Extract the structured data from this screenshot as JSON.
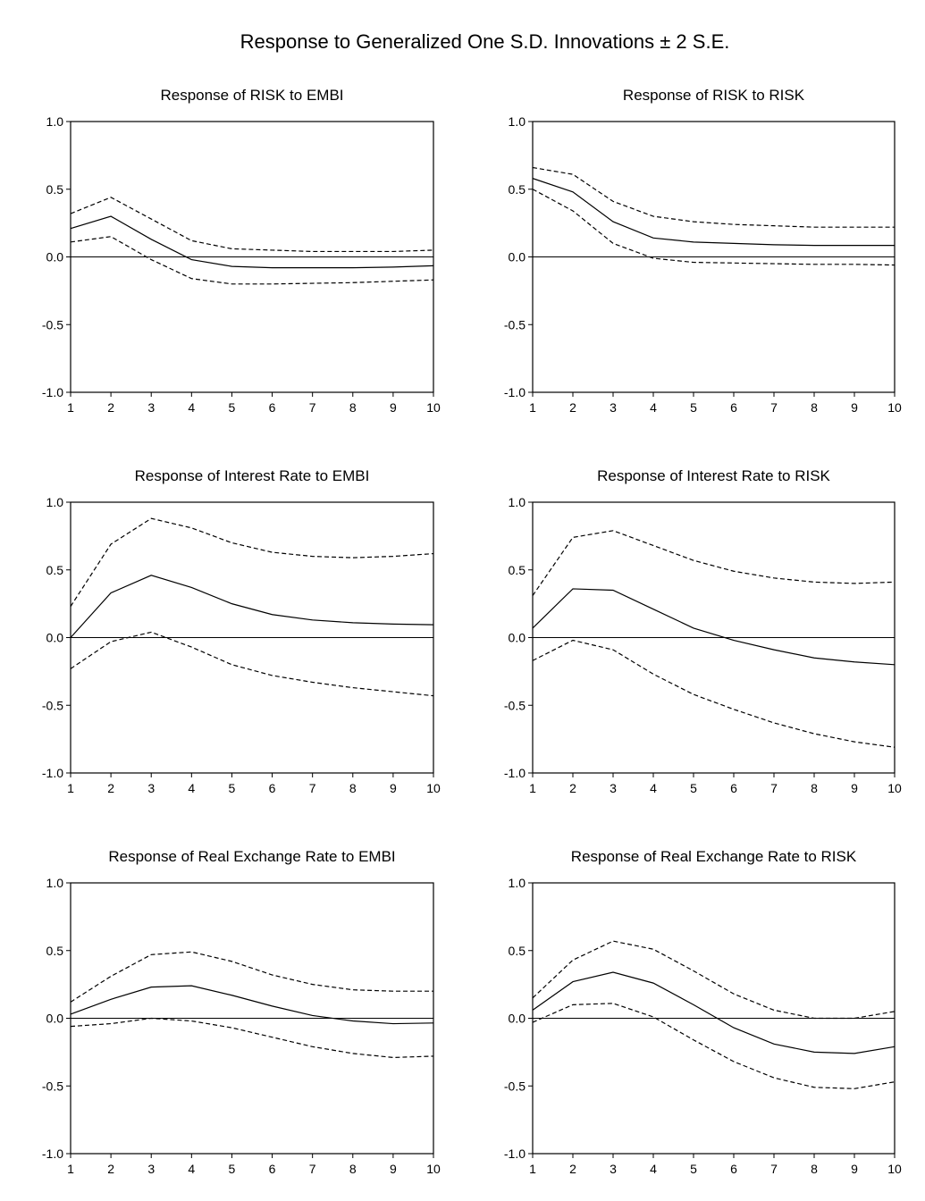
{
  "figure_title": "Response to Generalized One S.D. Innovations ± 2 S.E.",
  "chart_data": [
    {
      "type": "line",
      "title": "Response of RISK to EMBI",
      "x": [
        1,
        2,
        3,
        4,
        5,
        6,
        7,
        8,
        9,
        10
      ],
      "ylim": [
        -1.0,
        1.0
      ],
      "yticks": [
        "1.0",
        "0.5",
        "0.0",
        "-0.5",
        "-1.0"
      ],
      "series": [
        {
          "role": "upper",
          "style": "dashed",
          "values": [
            0.32,
            0.44,
            0.28,
            0.12,
            0.06,
            0.05,
            0.04,
            0.04,
            0.04,
            0.05
          ]
        },
        {
          "role": "response",
          "style": "solid",
          "values": [
            0.21,
            0.3,
            0.13,
            -0.02,
            -0.07,
            -0.08,
            -0.08,
            -0.08,
            -0.075,
            -0.065
          ]
        },
        {
          "role": "lower",
          "style": "dashed",
          "values": [
            0.11,
            0.15,
            -0.02,
            -0.16,
            -0.2,
            -0.2,
            -0.195,
            -0.19,
            -0.18,
            -0.17
          ]
        }
      ]
    },
    {
      "type": "line",
      "title": "Response of RISK to RISK",
      "x": [
        1,
        2,
        3,
        4,
        5,
        6,
        7,
        8,
        9,
        10
      ],
      "ylim": [
        -1.0,
        1.0
      ],
      "yticks": [
        "1.0",
        "0.5",
        "0.0",
        "-0.5",
        "-1.0"
      ],
      "series": [
        {
          "role": "upper",
          "style": "dashed",
          "values": [
            0.66,
            0.61,
            0.41,
            0.3,
            0.26,
            0.24,
            0.23,
            0.22,
            0.22,
            0.22
          ]
        },
        {
          "role": "response",
          "style": "solid",
          "values": [
            0.58,
            0.48,
            0.26,
            0.14,
            0.11,
            0.1,
            0.09,
            0.085,
            0.085,
            0.085
          ]
        },
        {
          "role": "lower",
          "style": "dashed",
          "values": [
            0.5,
            0.34,
            0.1,
            -0.01,
            -0.04,
            -0.045,
            -0.05,
            -0.055,
            -0.055,
            -0.06
          ]
        }
      ]
    },
    {
      "type": "line",
      "title": "Response of Interest Rate to EMBI",
      "x": [
        1,
        2,
        3,
        4,
        5,
        6,
        7,
        8,
        9,
        10
      ],
      "ylim": [
        -1.0,
        1.0
      ],
      "yticks": [
        "1.0",
        "0.5",
        "0.0",
        "-0.5",
        "-1.0"
      ],
      "series": [
        {
          "role": "upper",
          "style": "dashed",
          "values": [
            0.23,
            0.69,
            0.88,
            0.81,
            0.7,
            0.63,
            0.6,
            0.59,
            0.6,
            0.62
          ]
        },
        {
          "role": "response",
          "style": "solid",
          "values": [
            0.0,
            0.33,
            0.46,
            0.37,
            0.25,
            0.17,
            0.13,
            0.11,
            0.1,
            0.095
          ]
        },
        {
          "role": "lower",
          "style": "dashed",
          "values": [
            -0.23,
            -0.03,
            0.04,
            -0.07,
            -0.2,
            -0.28,
            -0.33,
            -0.37,
            -0.4,
            -0.43
          ]
        }
      ]
    },
    {
      "type": "line",
      "title": "Response of Interest Rate to RISK",
      "x": [
        1,
        2,
        3,
        4,
        5,
        6,
        7,
        8,
        9,
        10
      ],
      "ylim": [
        -1.0,
        1.0
      ],
      "yticks": [
        "1.0",
        "0.5",
        "0.0",
        "-0.5",
        "-1.0"
      ],
      "series": [
        {
          "role": "upper",
          "style": "dashed",
          "values": [
            0.31,
            0.74,
            0.79,
            0.68,
            0.57,
            0.49,
            0.44,
            0.41,
            0.4,
            0.41
          ]
        },
        {
          "role": "response",
          "style": "solid",
          "values": [
            0.07,
            0.36,
            0.35,
            0.21,
            0.07,
            -0.02,
            -0.09,
            -0.15,
            -0.18,
            -0.2
          ]
        },
        {
          "role": "lower",
          "style": "dashed",
          "values": [
            -0.17,
            -0.02,
            -0.09,
            -0.27,
            -0.42,
            -0.53,
            -0.63,
            -0.71,
            -0.77,
            -0.81
          ]
        }
      ]
    },
    {
      "type": "line",
      "title": "Response of Real Exchange Rate to EMBI",
      "x": [
        1,
        2,
        3,
        4,
        5,
        6,
        7,
        8,
        9,
        10
      ],
      "ylim": [
        -1.0,
        1.0
      ],
      "yticks": [
        "1.0",
        "0.5",
        "0.0",
        "-0.5",
        "-1.0"
      ],
      "series": [
        {
          "role": "upper",
          "style": "dashed",
          "values": [
            0.12,
            0.31,
            0.47,
            0.49,
            0.42,
            0.32,
            0.25,
            0.21,
            0.2,
            0.2
          ]
        },
        {
          "role": "response",
          "style": "solid",
          "values": [
            0.03,
            0.14,
            0.23,
            0.24,
            0.17,
            0.09,
            0.02,
            -0.02,
            -0.04,
            -0.035
          ]
        },
        {
          "role": "lower",
          "style": "dashed",
          "values": [
            -0.06,
            -0.04,
            0.0,
            -0.02,
            -0.07,
            -0.14,
            -0.21,
            -0.26,
            -0.29,
            -0.28
          ]
        }
      ]
    },
    {
      "type": "line",
      "title": "Response of Real Exchange Rate to RISK",
      "x": [
        1,
        2,
        3,
        4,
        5,
        6,
        7,
        8,
        9,
        10
      ],
      "ylim": [
        -1.0,
        1.0
      ],
      "yticks": [
        "1.0",
        "0.5",
        "0.0",
        "-0.5",
        "-1.0"
      ],
      "series": [
        {
          "role": "upper",
          "style": "dashed",
          "values": [
            0.15,
            0.43,
            0.57,
            0.51,
            0.35,
            0.18,
            0.06,
            0.0,
            0.0,
            0.05
          ]
        },
        {
          "role": "response",
          "style": "solid",
          "values": [
            0.06,
            0.27,
            0.34,
            0.26,
            0.1,
            -0.07,
            -0.19,
            -0.25,
            -0.26,
            -0.21
          ]
        },
        {
          "role": "lower",
          "style": "dashed",
          "values": [
            -0.03,
            0.1,
            0.11,
            0.01,
            -0.16,
            -0.32,
            -0.44,
            -0.51,
            -0.52,
            -0.47
          ]
        }
      ]
    }
  ]
}
